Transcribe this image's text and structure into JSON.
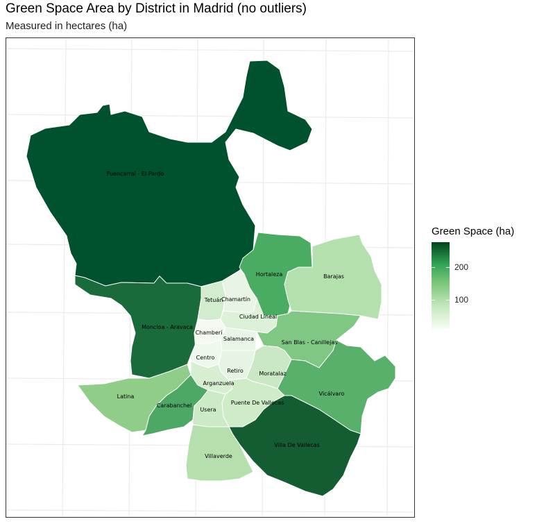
{
  "title": "Green Space Area by District in Madrid (no outliers)",
  "subtitle": "Measured in hectares (ha)",
  "legend": {
    "title": "Green Space (ha)",
    "ticks": [
      "200",
      "100"
    ],
    "colors": {
      "low": "#f7fcf5",
      "mid": "#74c476",
      "high": "#00441b"
    }
  },
  "districts": [
    {
      "name": "Fuencarral - El Pardo",
      "color": "#00512d"
    },
    {
      "name": "Moncloa - Aravaca",
      "color": "#1a6b3c"
    },
    {
      "name": "Hortaleza",
      "color": "#4aac62"
    },
    {
      "name": "Barajas",
      "color": "#b3e0ad"
    },
    {
      "name": "Tetuán",
      "color": "#d3eccf"
    },
    {
      "name": "Chamartín",
      "color": "#e8f5e4"
    },
    {
      "name": "Ciudad Lineal",
      "color": "#ddf0d8"
    },
    {
      "name": "Chamberí",
      "color": "#f4faf2"
    },
    {
      "name": "Salamanca",
      "color": "#e9f5e6"
    },
    {
      "name": "San Blas - Canillejas",
      "color": "#80c784"
    },
    {
      "name": "Centro",
      "color": "#eef8ec"
    },
    {
      "name": "Retiro",
      "color": "#e6f4e3"
    },
    {
      "name": "Moratalaz",
      "color": "#cbe8c4"
    },
    {
      "name": "Arganzuela",
      "color": "#d7eed1"
    },
    {
      "name": "Latina",
      "color": "#8fcd89"
    },
    {
      "name": "Carabanchel",
      "color": "#4ea865"
    },
    {
      "name": "Usera",
      "color": "#cdeac6"
    },
    {
      "name": "Puente De Vallecas",
      "color": "#cfebc8"
    },
    {
      "name": "Vicálvaro",
      "color": "#58b06b"
    },
    {
      "name": "Villa De Vallecas",
      "color": "#145d33"
    },
    {
      "name": "Villaverde",
      "color": "#b5e0ae"
    }
  ]
}
